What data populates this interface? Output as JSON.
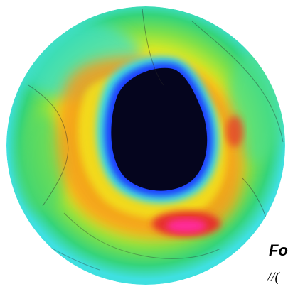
{
  "caption": {
    "main": "Fo",
    "sub": "//("
  },
  "map": {
    "colors": {
      "hole_core": "#000000",
      "hole_edge": "#0a1a8a",
      "hole_ring": "#1a3cff",
      "cyan": "#3fe0e0",
      "green": "#35d47a",
      "yellow": "#f2ee1a",
      "orange": "#f59a1e",
      "red": "#e6322a",
      "magenta": "#ff2a9a",
      "coastline": "#2a2a2a"
    }
  }
}
